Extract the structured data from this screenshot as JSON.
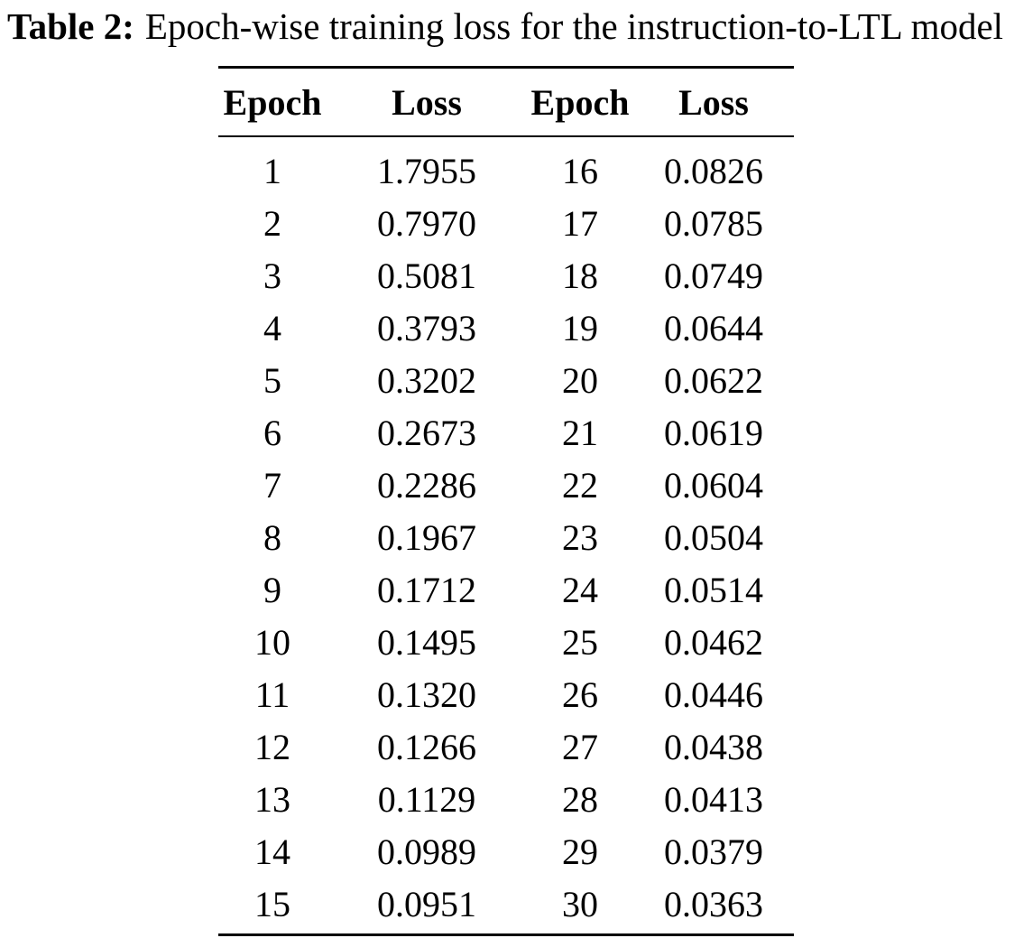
{
  "caption": {
    "label": "Table 2:",
    "text": "Epoch-wise training loss for the instruction-to-LTL model"
  },
  "table": {
    "headers": [
      "Epoch",
      "Loss",
      "Epoch",
      "Loss"
    ],
    "rows": [
      [
        "1",
        "1.7955",
        "16",
        "0.0826"
      ],
      [
        "2",
        "0.7970",
        "17",
        "0.0785"
      ],
      [
        "3",
        "0.5081",
        "18",
        "0.0749"
      ],
      [
        "4",
        "0.3793",
        "19",
        "0.0644"
      ],
      [
        "5",
        "0.3202",
        "20",
        "0.0622"
      ],
      [
        "6",
        "0.2673",
        "21",
        "0.0619"
      ],
      [
        "7",
        "0.2286",
        "22",
        "0.0604"
      ],
      [
        "8",
        "0.1967",
        "23",
        "0.0504"
      ],
      [
        "9",
        "0.1712",
        "24",
        "0.0514"
      ],
      [
        "10",
        "0.1495",
        "25",
        "0.0462"
      ],
      [
        "11",
        "0.1320",
        "26",
        "0.0446"
      ],
      [
        "12",
        "0.1266",
        "27",
        "0.0438"
      ],
      [
        "13",
        "0.1129",
        "28",
        "0.0413"
      ],
      [
        "14",
        "0.0989",
        "29",
        "0.0379"
      ],
      [
        "15",
        "0.0951",
        "30",
        "0.0363"
      ]
    ]
  }
}
